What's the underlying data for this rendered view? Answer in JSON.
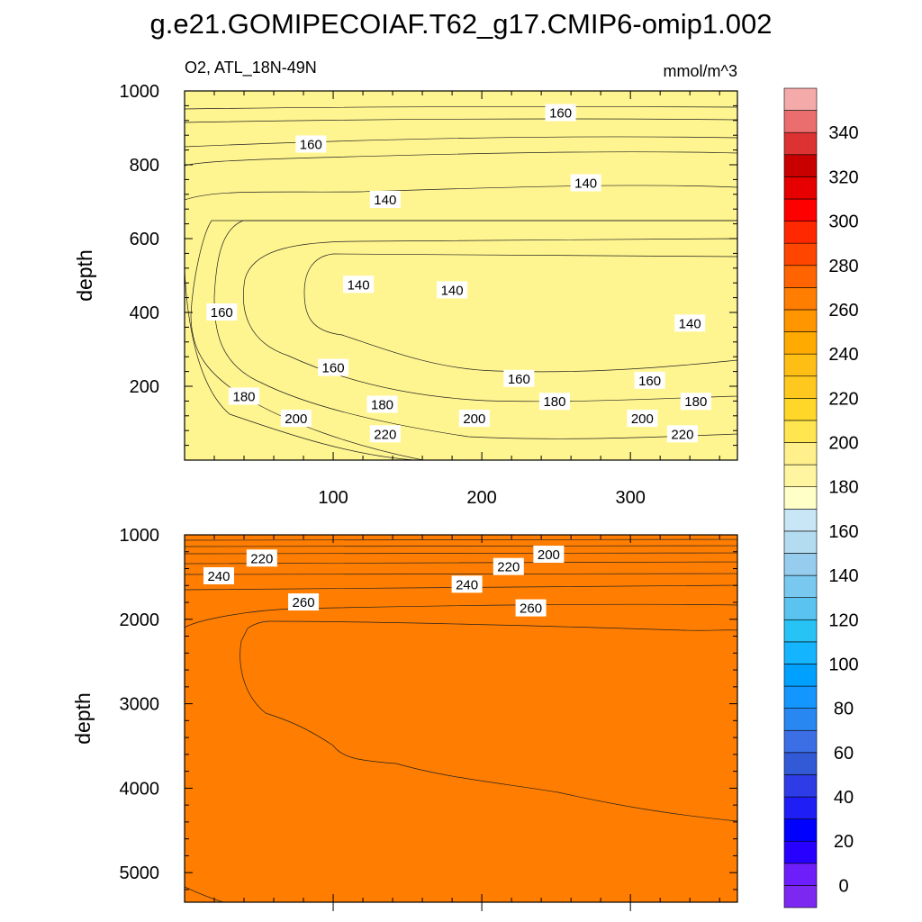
{
  "figure": {
    "title": "g.e21.GOMIPECOIAF.T62_g17.CMIP6-omip1.002"
  },
  "chart_data": {
    "type": "contour",
    "left_label": "O2, ATL_18N-49N",
    "right_label": "mmol/m^3",
    "ylabel": "depth",
    "x_ticks": [
      100,
      200,
      300
    ],
    "xlim": [
      0,
      372
    ],
    "panels": [
      {
        "name": "upper",
        "ylim": [
          1000,
          0
        ],
        "y_ticks": [
          200,
          400,
          600,
          800,
          1000
        ],
        "contour_labels": [
          {
            "text": "220",
            "x": 135,
            "y": 70
          },
          {
            "text": "220",
            "x": 335,
            "y": 70
          },
          {
            "text": "200",
            "x": 75,
            "y": 112
          },
          {
            "text": "200",
            "x": 195,
            "y": 112
          },
          {
            "text": "200",
            "x": 308,
            "y": 112
          },
          {
            "text": "180",
            "x": 40,
            "y": 172
          },
          {
            "text": "180",
            "x": 133,
            "y": 150
          },
          {
            "text": "180",
            "x": 249,
            "y": 158
          },
          {
            "text": "180",
            "x": 344,
            "y": 158
          },
          {
            "text": "160",
            "x": 100,
            "y": 250
          },
          {
            "text": "160",
            "x": 225,
            "y": 220
          },
          {
            "text": "160",
            "x": 313,
            "y": 215
          },
          {
            "text": "160",
            "x": 25,
            "y": 400
          },
          {
            "text": "140",
            "x": 340,
            "y": 370
          },
          {
            "text": "140",
            "x": 117,
            "y": 475
          },
          {
            "text": "140",
            "x": 180,
            "y": 460
          },
          {
            "text": "140",
            "x": 135,
            "y": 705
          },
          {
            "text": "140",
            "x": 270,
            "y": 750
          },
          {
            "text": "160",
            "x": 85,
            "y": 855
          },
          {
            "text": "160",
            "x": 253,
            "y": 940
          }
        ]
      },
      {
        "name": "lower",
        "ylim": [
          1000,
          5350
        ],
        "y_ticks": [
          1000,
          2000,
          3000,
          4000,
          5000
        ],
        "contour_labels": [
          {
            "text": "220",
            "x": 52,
            "y": 1280
          },
          {
            "text": "240",
            "x": 23,
            "y": 1490
          },
          {
            "text": "260",
            "x": 80,
            "y": 1800
          },
          {
            "text": "200",
            "x": 245,
            "y": 1235
          },
          {
            "text": "220",
            "x": 218,
            "y": 1380
          },
          {
            "text": "240",
            "x": 190,
            "y": 1590
          },
          {
            "text": "260",
            "x": 233,
            "y": 1870
          }
        ]
      }
    ],
    "colorbar": {
      "levels": [
        0,
        10,
        20,
        30,
        40,
        50,
        60,
        70,
        80,
        90,
        100,
        110,
        120,
        130,
        140,
        150,
        160,
        170,
        180,
        190,
        200,
        210,
        220,
        230,
        240,
        250,
        260,
        270,
        280,
        290,
        300,
        310,
        320,
        330,
        340,
        350
      ],
      "tick_labels": [
        "0",
        "20",
        "40",
        "60",
        "80",
        "100",
        "120",
        "140",
        "160",
        "180",
        "200",
        "220",
        "240",
        "260",
        "280",
        "300",
        "320",
        "340"
      ],
      "colors": [
        "#7c28f0",
        "#6e1efa",
        "#2800ff",
        "#0000ff",
        "#1e1ef5",
        "#2d3ce6",
        "#325ad7",
        "#3c6ee6",
        "#2887f0",
        "#1496ff",
        "#00a0ff",
        "#14b4ff",
        "#28c3f5",
        "#5ac3f0",
        "#78c8f0",
        "#96cdee",
        "#b4dcf0",
        "#c8e6f5",
        "#ffffc8",
        "#fff5a0",
        "#fff08c",
        "#ffe650",
        "#ffd728",
        "#ffc81e",
        "#ffbe14",
        "#ffaa00",
        "#ff9600",
        "#ff7d00",
        "#ff6400",
        "#ff4600",
        "#ff2800",
        "#ff0000",
        "#e60000",
        "#c80000",
        "#dc3232",
        "#eb6e6e",
        "#f5aaaa"
      ]
    }
  }
}
